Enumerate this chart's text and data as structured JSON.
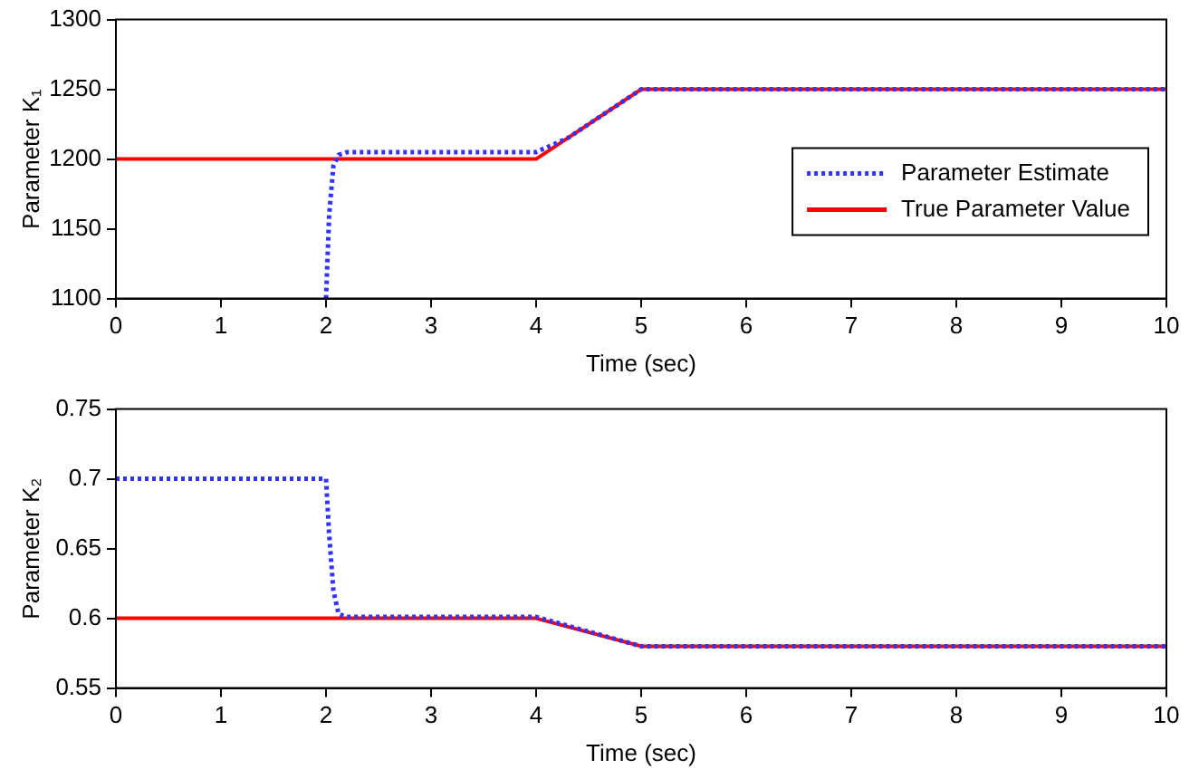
{
  "chart_data": [
    {
      "type": "line",
      "xlabel": "Time (sec)",
      "ylabel": "Parameter K₁",
      "xlim": [
        0,
        10
      ],
      "ylim": [
        1100,
        1300
      ],
      "xticks": [
        0,
        1,
        2,
        3,
        4,
        5,
        6,
        7,
        8,
        9,
        10
      ],
      "yticks": [
        1100,
        1150,
        1200,
        1250,
        1300
      ],
      "grid": false,
      "legend": "right",
      "marker": "none",
      "series": [
        {
          "name": "Parameter Estimate",
          "color": "#3333ff",
          "line_style": "dotted",
          "x": [
            2,
            2.03,
            2.07,
            2.12,
            2.2,
            3,
            4,
            4.3,
            4.6,
            5,
            10
          ],
          "values": [
            1100,
            1160,
            1195,
            1203,
            1205,
            1205,
            1205,
            1215,
            1230,
            1250,
            1250
          ]
        },
        {
          "name": "True Parameter Value",
          "color": "#ff0000",
          "line_style": "solid",
          "x": [
            0,
            4,
            5,
            10
          ],
          "values": [
            1200,
            1200,
            1250,
            1250
          ]
        }
      ]
    },
    {
      "type": "line",
      "xlabel": "Time (sec)",
      "ylabel": "Parameter K₂",
      "xlim": [
        0,
        10
      ],
      "ylim": [
        0.55,
        0.75
      ],
      "xticks": [
        0,
        1,
        2,
        3,
        4,
        5,
        6,
        7,
        8,
        9,
        10
      ],
      "yticks": [
        0.55,
        0.6,
        0.65,
        0.7,
        0.75
      ],
      "grid": false,
      "legend": false,
      "marker": "none",
      "series": [
        {
          "color": "#3333ff",
          "line_style": "dotted",
          "x": [
            0,
            2,
            2.03,
            2.07,
            2.12,
            2.2,
            4,
            5,
            10
          ],
          "values": [
            0.7,
            0.7,
            0.66,
            0.62,
            0.603,
            0.601,
            0.601,
            0.58,
            0.58
          ]
        },
        {
          "color": "#ff0000",
          "line_style": "solid",
          "x": [
            0,
            4,
            5,
            10
          ],
          "values": [
            0.6,
            0.6,
            0.58,
            0.58
          ]
        }
      ]
    }
  ]
}
